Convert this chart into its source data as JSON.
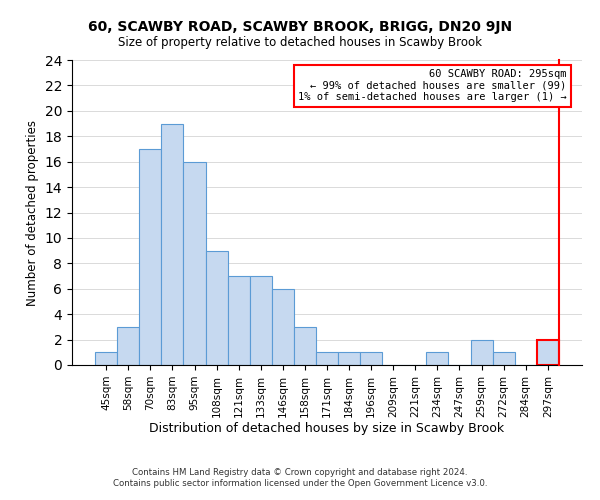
{
  "title": "60, SCAWBY ROAD, SCAWBY BROOK, BRIGG, DN20 9JN",
  "subtitle": "Size of property relative to detached houses in Scawby Brook",
  "xlabel": "Distribution of detached houses by size in Scawby Brook",
  "ylabel": "Number of detached properties",
  "bar_labels": [
    "45sqm",
    "58sqm",
    "70sqm",
    "83sqm",
    "95sqm",
    "108sqm",
    "121sqm",
    "133sqm",
    "146sqm",
    "158sqm",
    "171sqm",
    "184sqm",
    "196sqm",
    "209sqm",
    "221sqm",
    "234sqm",
    "247sqm",
    "259sqm",
    "272sqm",
    "284sqm",
    "297sqm"
  ],
  "bar_values": [
    1,
    3,
    17,
    19,
    16,
    9,
    7,
    7,
    6,
    3,
    1,
    1,
    1,
    0,
    0,
    1,
    0,
    2,
    1,
    0,
    2
  ],
  "bar_color": "#c6d9f0",
  "bar_edge_color": "#5b9bd5",
  "highlight_bar_index": 20,
  "highlight_edge_color": "#ff0000",
  "ylim": [
    0,
    24
  ],
  "yticks": [
    0,
    2,
    4,
    6,
    8,
    10,
    12,
    14,
    16,
    18,
    20,
    22,
    24
  ],
  "annotation_title": "60 SCAWBY ROAD: 295sqm",
  "annotation_line1": "← 99% of detached houses are smaller (99)",
  "annotation_line2": "1% of semi-detached houses are larger (1) →",
  "annotation_box_color": "#ffffff",
  "annotation_box_edge": "#ff0000",
  "footnote1": "Contains HM Land Registry data © Crown copyright and database right 2024.",
  "footnote2": "Contains public sector information licensed under the Open Government Licence v3.0."
}
